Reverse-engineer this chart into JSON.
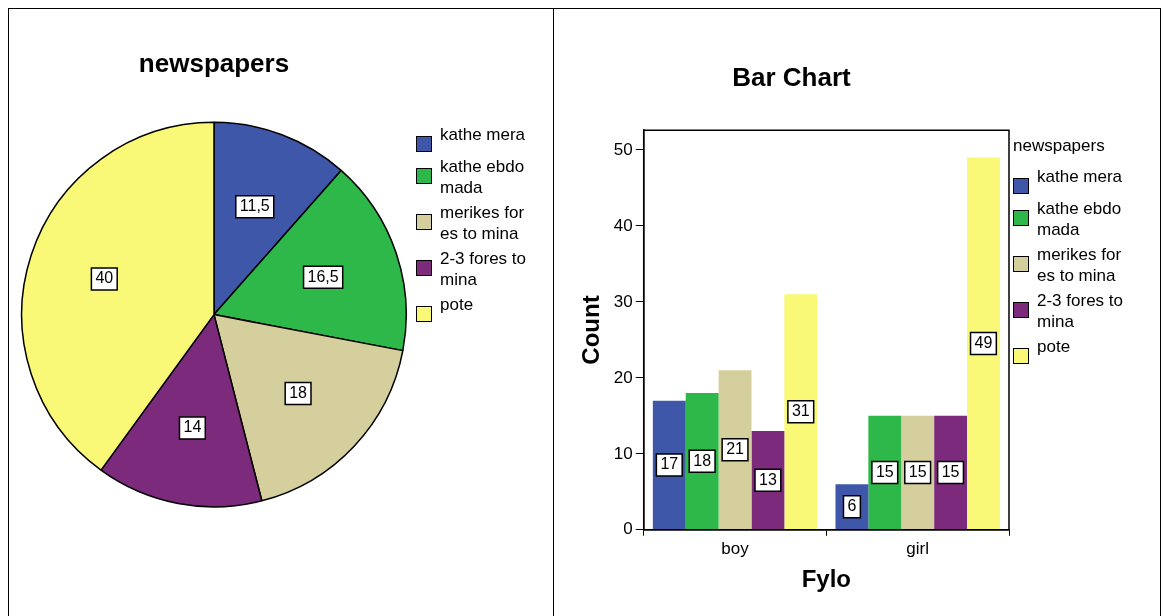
{
  "chart_data": [
    {
      "type": "pie",
      "title": "newspapers",
      "categories": [
        "kathe mera",
        "kathe ebdomada",
        "merikes fores to mina",
        "2-3 fores to mina",
        "pote"
      ],
      "values": [
        11.5,
        16.5,
        18,
        14,
        40
      ],
      "colors": [
        "#3f57a9",
        "#2eb84a",
        "#d5cf9e",
        "#7b2a7c",
        "#f9f977"
      ],
      "value_labels": [
        "11,5",
        "16,5",
        "18",
        "14",
        "40"
      ],
      "legend": "right"
    },
    {
      "type": "bar",
      "title": "Bar Chart",
      "xlabel": "Fylo",
      "ylabel": "Count",
      "legend_title": "newspapers",
      "categories": [
        "boy",
        "girl"
      ],
      "series": [
        {
          "name": "kathe mera",
          "color": "#3f57a9",
          "values": [
            17,
            6
          ]
        },
        {
          "name": "kathe ebdomada",
          "color": "#2eb84a",
          "values": [
            18,
            15
          ]
        },
        {
          "name": "merikes fores to mina",
          "color": "#d5cf9e",
          "values": [
            21,
            15
          ]
        },
        {
          "name": "2-3 fores to mina",
          "color": "#7b2a7c",
          "values": [
            13,
            15
          ]
        },
        {
          "name": "pote",
          "color": "#f9f977",
          "values": [
            31,
            49
          ]
        }
      ],
      "ylim": [
        0,
        52.6
      ],
      "yticks": [
        0,
        10,
        20,
        30,
        40,
        50
      ],
      "data_labels": true,
      "legend": "right",
      "grid": false
    }
  ]
}
